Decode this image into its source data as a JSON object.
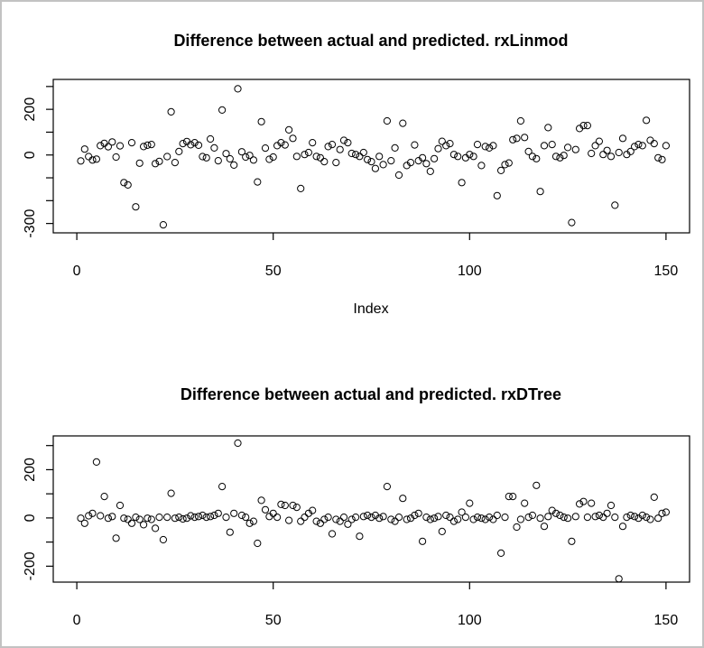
{
  "window": {
    "background": "#ffffff",
    "frame_border_color": "#c2c2c2"
  },
  "chart_data": [
    {
      "type": "scatter",
      "title": "Difference between actual and predicted. rxLinmod",
      "xlabel": "Index",
      "ylabel": "",
      "marker": "open-circle",
      "marker_color": "#000000",
      "grid": false,
      "xlim": [
        -6,
        156
      ],
      "ylim": [
        -341,
        331
      ],
      "x_axis": {
        "tick_values": [
          0,
          50,
          100,
          150
        ],
        "tick_labels": [
          "0",
          "50",
          "100",
          "150"
        ]
      },
      "y_axis": {
        "tick_values": [
          300,
          200,
          100,
          0,
          -100,
          -200,
          -300
        ],
        "tick_labels": [
          "",
          "200",
          "",
          "0",
          "",
          "",
          "-300"
        ]
      },
      "x_description": "Index 1..150",
      "x_start": 1,
      "values": [
        -26,
        26,
        -7,
        -22,
        -18,
        41,
        51,
        36,
        57,
        -9,
        40,
        -121,
        -131,
        54,
        -227,
        -36,
        37,
        43,
        46,
        -38,
        -28,
        -306,
        -7,
        189,
        -33,
        15,
        50,
        59,
        45,
        54,
        43,
        -7,
        -12,
        70,
        31,
        -25,
        197,
        6,
        -17,
        -44,
        290,
        14,
        -9,
        -2,
        -22,
        -118,
        146,
        30,
        -19,
        -9,
        41,
        54,
        44,
        110,
        73,
        -6,
        -147,
        2,
        11,
        54,
        -6,
        -12,
        -29,
        37,
        46,
        -33,
        24,
        64,
        54,
        7,
        2,
        -6,
        11,
        -20,
        -29,
        -59,
        -6,
        -42,
        149,
        -25,
        31,
        -88,
        139,
        -46,
        -33,
        44,
        -25,
        -12,
        -38,
        -72,
        -16,
        28,
        60,
        41,
        50,
        2,
        -6,
        -121,
        -12,
        2,
        -6,
        46,
        -46,
        37,
        31,
        41,
        -178,
        -68,
        -42,
        -35,
        67,
        73,
        149,
        77,
        15,
        -6,
        -16,
        -160,
        41,
        120,
        46,
        -6,
        -12,
        -2,
        33,
        -296,
        24,
        116,
        129,
        129,
        7,
        41,
        60,
        2,
        20,
        -6,
        -220,
        11,
        73,
        2,
        15,
        37,
        46,
        41,
        152,
        64,
        50,
        -12,
        -20,
        41
      ]
    },
    {
      "type": "scatter",
      "title": "Difference between actual and predicted. rxDTree",
      "xlabel": "",
      "ylabel": "",
      "marker": "open-circle",
      "marker_color": "#000000",
      "grid": false,
      "xlim": [
        -6,
        156
      ],
      "ylim": [
        -266,
        340
      ],
      "x_axis": {
        "tick_values": [
          0,
          50,
          100,
          150
        ],
        "tick_labels": [
          "0",
          "50",
          "100",
          "150"
        ]
      },
      "y_axis": {
        "tick_values": [
          300,
          200,
          100,
          0,
          -100,
          -200
        ],
        "tick_labels": [
          "",
          "200",
          "",
          "0",
          "",
          "-200"
        ]
      },
      "x_description": "Index 1..150",
      "x_start": 1,
      "values": [
        -1,
        -22,
        9,
        19,
        232,
        9,
        89,
        -1,
        6,
        -84,
        52,
        -1,
        -6,
        -22,
        3,
        -6,
        -28,
        -1,
        -6,
        -43,
        3,
        -90,
        3,
        102,
        -1,
        3,
        -4,
        -1,
        9,
        3,
        6,
        11,
        3,
        6,
        11,
        19,
        130,
        3,
        -59,
        19,
        310,
        11,
        3,
        -22,
        -14,
        -105,
        73,
        34,
        6,
        19,
        3,
        56,
        52,
        -10,
        52,
        44,
        -14,
        3,
        19,
        31,
        -14,
        -22,
        -6,
        3,
        -66,
        -6,
        -14,
        3,
        -26,
        -6,
        3,
        -76,
        6,
        11,
        3,
        11,
        -1,
        6,
        130,
        -6,
        -14,
        3,
        81,
        -6,
        -1,
        11,
        19,
        -97,
        3,
        -6,
        -1,
        6,
        -56,
        11,
        3,
        -14,
        -6,
        24,
        3,
        61,
        -6,
        3,
        -1,
        -6,
        3,
        -6,
        11,
        -146,
        3,
        89,
        89,
        -38,
        -6,
        61,
        3,
        11,
        135,
        -1,
        -35,
        6,
        31,
        19,
        11,
        3,
        -1,
        -97,
        6,
        58,
        68,
        3,
        61,
        6,
        11,
        3,
        19,
        52,
        3,
        -252,
        -35,
        3,
        11,
        6,
        -1,
        11,
        3,
        -6,
        86,
        -1,
        19,
        24
      ]
    }
  ]
}
